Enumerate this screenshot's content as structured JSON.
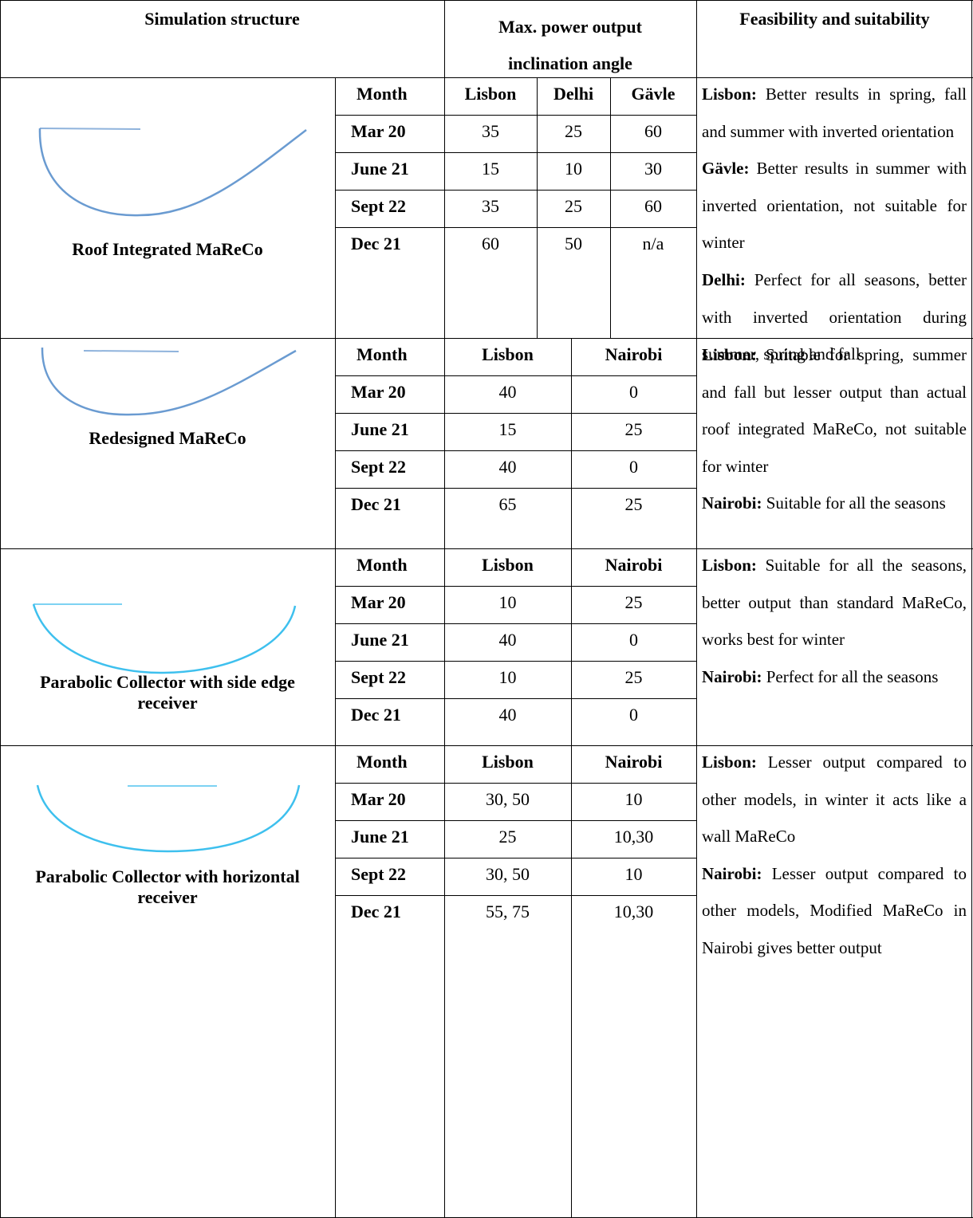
{
  "header": {
    "structure": "Simulation structure",
    "angle": "Max. power output inclination angle",
    "feasibility": "Feasibility and suitability"
  },
  "rows": [
    {
      "name": "Roof Integrated MaReCo",
      "columns": [
        "Month",
        "Lisbon",
        "Delhi",
        "Gävle"
      ],
      "months": [
        {
          "month": "Mar 20",
          "values": [
            "35",
            "25",
            "60"
          ]
        },
        {
          "month": "June 21",
          "values": [
            "15",
            "10",
            "30"
          ]
        },
        {
          "month": "Sept 22",
          "values": [
            "35",
            "25",
            "60"
          ]
        },
        {
          "month": "Dec 21",
          "values": [
            "60",
            "50",
            "n/a"
          ]
        }
      ],
      "notes": [
        {
          "city": "Lisbon:",
          "text": "Better results in spring, fall and summer with inverted orientation"
        },
        {
          "city": "Gävle:",
          "text": "Better results in summer with inverted orientation, not suitable for winter"
        },
        {
          "city": "Delhi:",
          "text": "Perfect for all seasons, better with inverted orientation during summer, spring and fall"
        }
      ]
    },
    {
      "name": "Redesigned MaReCo",
      "columns": [
        "Month",
        "Lisbon",
        "Nairobi"
      ],
      "months": [
        {
          "month": "Mar 20",
          "values": [
            "40",
            "0"
          ]
        },
        {
          "month": "June 21",
          "values": [
            "15",
            "25"
          ]
        },
        {
          "month": "Sept 22",
          "values": [
            "40",
            "0"
          ]
        },
        {
          "month": "Dec 21",
          "values": [
            "65",
            "25"
          ]
        }
      ],
      "notes": [
        {
          "city": "Lisbon:",
          "text": "Suitable for spring, summer and fall but lesser output than actual roof integrated MaReCo, not suitable for winter"
        },
        {
          "city": "Nairobi:",
          "text": "Suitable for all the seasons"
        }
      ]
    },
    {
      "name": "Parabolic Collector with side edge receiver",
      "columns": [
        "Month",
        "Lisbon",
        "Nairobi"
      ],
      "months": [
        {
          "month": "Mar 20",
          "values": [
            "10",
            "25"
          ]
        },
        {
          "month": "June 21",
          "values": [
            "40",
            "0"
          ]
        },
        {
          "month": "Sept 22",
          "values": [
            "10",
            "25"
          ]
        },
        {
          "month": "Dec 21",
          "values": [
            "40",
            "0"
          ]
        }
      ],
      "notes": [
        {
          "city": "Lisbon:",
          "text": "Suitable for all the seasons, better output than standard MaReCo, works best for winter"
        },
        {
          "city": "Nairobi:",
          "text": "Perfect for all the seasons"
        }
      ]
    },
    {
      "name": "Parabolic Collector with horizontal receiver",
      "columns": [
        "Month",
        "Lisbon",
        "Nairobi"
      ],
      "months": [
        {
          "month": "Mar 20",
          "values": [
            "30, 50",
            "10"
          ]
        },
        {
          "month": "June 21",
          "values": [
            "25",
            "10,30"
          ]
        },
        {
          "month": "Sept 22",
          "values": [
            "30, 50",
            "10"
          ]
        },
        {
          "month": "Dec 21",
          "values": [
            "55, 75",
            "10,30"
          ]
        }
      ],
      "notes": [
        {
          "city": "Lisbon:",
          "text": "Lesser output compared to other models, in winter it acts like a wall MaReCo"
        },
        {
          "city": "Nairobi:",
          "text": "Lesser output compared to other models, Modified MaReCo in Nairobi gives better output"
        }
      ]
    }
  ]
}
